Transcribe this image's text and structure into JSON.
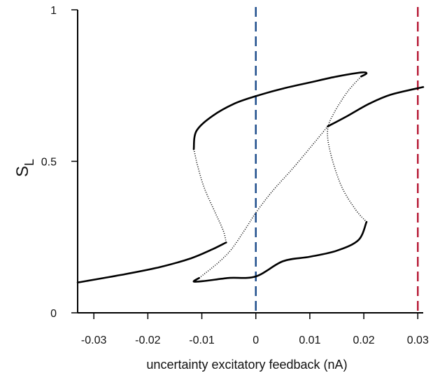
{
  "colors": {
    "curve": "#000000",
    "axis": "#000000",
    "line_blue": "#1f4e8c",
    "line_red": "#b8203a"
  },
  "chart_data": {
    "type": "line",
    "xlabel": "uncertainty excitatory feedback (nA)",
    "ylabel": "S",
    "ylabel_subscript": "L",
    "xlim": [
      -0.033,
      0.031
    ],
    "ylim": [
      0,
      1
    ],
    "grid": false,
    "x_ticks": [
      -0.03,
      -0.02,
      -0.01,
      0,
      0.01,
      0.02,
      0.03
    ],
    "x_tick_labels": [
      "-0.03",
      "-0.02",
      "-0.01",
      "0",
      "0.01",
      "0.02",
      "0.03"
    ],
    "y_ticks": [
      0,
      0.5,
      1
    ],
    "y_tick_labels": [
      "0",
      "0.5",
      "1"
    ],
    "vertical_lines": [
      {
        "x": 0,
        "color": "#1f4e8c",
        "style": "dashed"
      },
      {
        "x": 0.03,
        "color": "#b8203a",
        "style": "dashed"
      }
    ],
    "series": [
      {
        "style": "solid",
        "x": [
          -0.033,
          -0.025,
          -0.018,
          -0.012,
          -0.008,
          -0.0055
        ],
        "y": [
          0.1,
          0.125,
          0.15,
          0.18,
          0.21,
          0.232
        ]
      },
      {
        "style": "dotted",
        "x": [
          -0.0055,
          -0.006,
          -0.0075,
          -0.0095,
          -0.0107,
          -0.0113,
          -0.0115
        ],
        "y": [
          0.232,
          0.27,
          0.33,
          0.41,
          0.48,
          0.525,
          0.54
        ]
      },
      {
        "style": "solid",
        "x": [
          -0.0115,
          -0.011,
          -0.008,
          -0.004,
          0,
          0.005,
          0.01,
          0.015,
          0.0195,
          0.0205,
          0.0195
        ],
        "y": [
          0.54,
          0.6,
          0.65,
          0.69,
          0.715,
          0.74,
          0.76,
          0.78,
          0.793,
          0.79,
          0.78
        ]
      },
      {
        "style": "dotted",
        "x": [
          0.0195,
          0.017,
          0.0145,
          0.0133,
          0.0138,
          0.0158,
          0.0185,
          0.0205
        ],
        "y": [
          0.78,
          0.73,
          0.66,
          0.605,
          0.53,
          0.42,
          0.34,
          0.3
        ]
      },
      {
        "style": "solid",
        "x": [
          0.0205,
          0.019,
          0.015,
          0.01,
          0.005,
          0,
          -0.005,
          -0.0095,
          -0.0115,
          -0.0105
        ],
        "y": [
          0.3,
          0.24,
          0.205,
          0.185,
          0.17,
          0.12,
          0.115,
          0.105,
          0.103,
          0.115
        ]
      },
      {
        "style": "dotted",
        "x": [
          -0.0105,
          -0.007,
          -0.0045,
          -0.002,
          0,
          0.003,
          0.007,
          0.011,
          0.0133
        ],
        "y": [
          0.115,
          0.165,
          0.21,
          0.275,
          0.33,
          0.4,
          0.48,
          0.565,
          0.615
        ]
      },
      {
        "style": "solid",
        "x": [
          0.0133,
          0.017,
          0.021,
          0.025,
          0.031
        ],
        "y": [
          0.615,
          0.65,
          0.69,
          0.72,
          0.745
        ]
      }
    ]
  }
}
